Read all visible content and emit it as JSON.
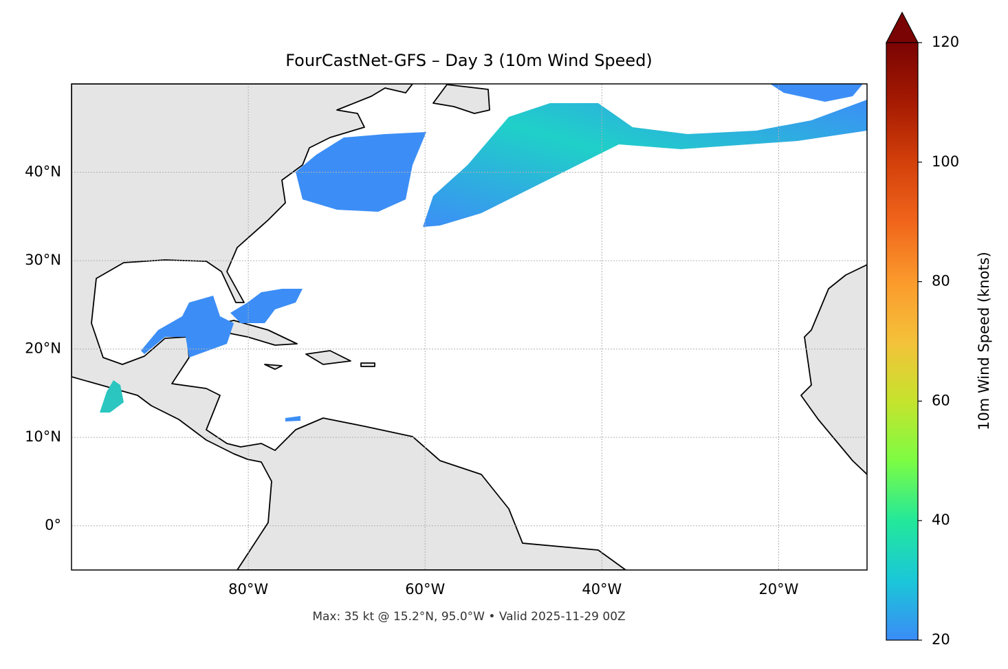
{
  "chart_data": {
    "type": "map",
    "title": "FourCastNet-GFS – Day 3 (10m Wind Speed)",
    "subtitle": "Max: 35 kt @ 15.2°N, 95.0°W • Valid 2025-11-29 00Z",
    "xlim": [
      -100,
      -10
    ],
    "ylim": [
      -5,
      50
    ],
    "xticks": [
      {
        "value": -80,
        "label": "80°W"
      },
      {
        "value": -60,
        "label": "60°W"
      },
      {
        "value": -40,
        "label": "40°W"
      },
      {
        "value": -20,
        "label": "20°W"
      }
    ],
    "yticks": [
      {
        "value": 0,
        "label": "0°"
      },
      {
        "value": 10,
        "label": "10°N"
      },
      {
        "value": 20,
        "label": "20°N"
      },
      {
        "value": 30,
        "label": "30°N"
      },
      {
        "value": 40,
        "label": "40°N"
      }
    ],
    "grid": true,
    "colorbar": {
      "label": "10m Wind Speed (knots)",
      "lim": [
        20,
        120
      ],
      "ticks": [
        20,
        40,
        60,
        80,
        100,
        120
      ]
    }
  }
}
